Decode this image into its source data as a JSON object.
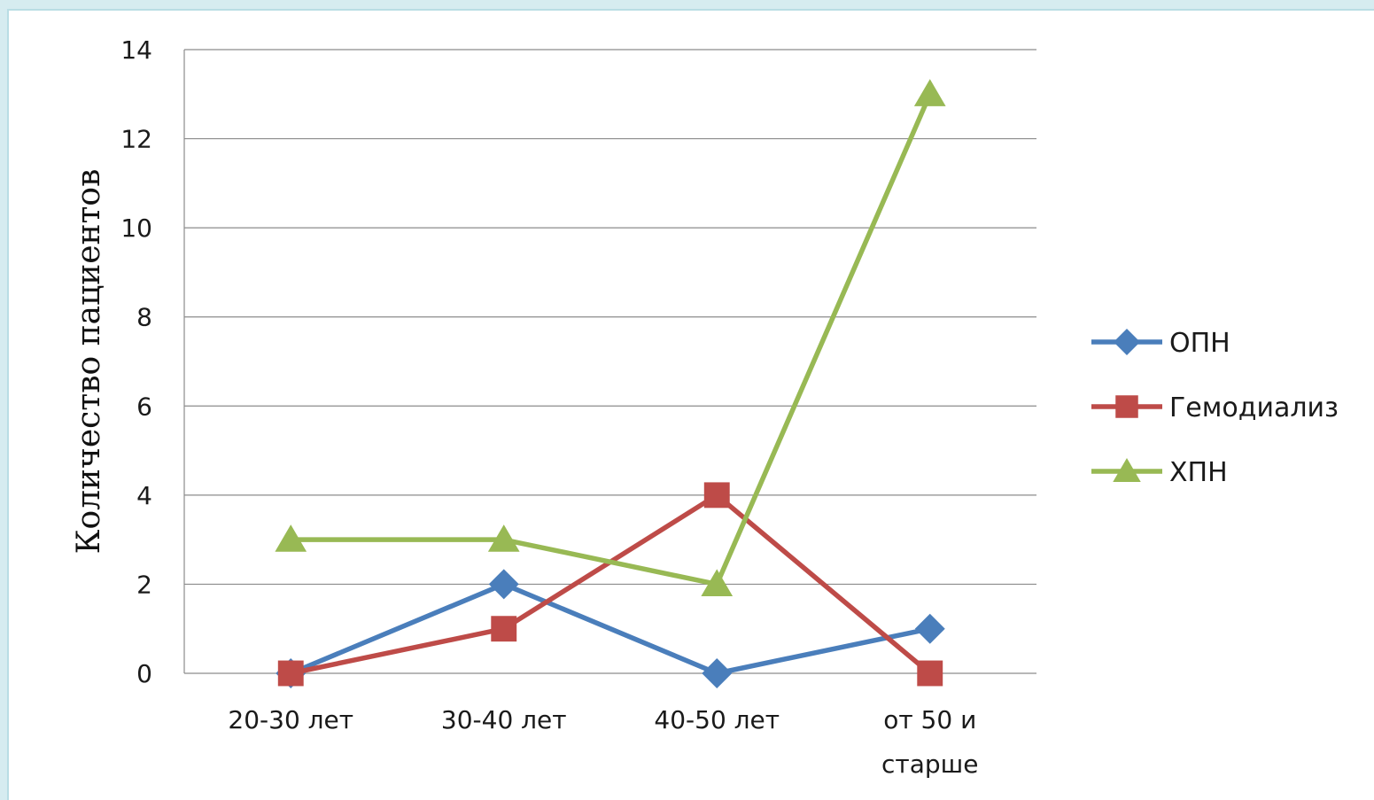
{
  "chart_data": {
    "type": "line",
    "title": "",
    "xlabel": "",
    "ylabel": "Количество пациентов",
    "ylim": [
      0,
      14
    ],
    "yticks": [
      0,
      2,
      4,
      6,
      8,
      10,
      12,
      14
    ],
    "grid": true,
    "legend_position": "right",
    "categories": [
      [
        "20-30 лет"
      ],
      [
        "30-40 лет"
      ],
      [
        "40-50 лет"
      ],
      [
        "от 50 и",
        "старше"
      ]
    ],
    "series": [
      {
        "name": "ОПН",
        "values": [
          0,
          2,
          0,
          1
        ],
        "color": "#4a7ebb",
        "marker": "diamond"
      },
      {
        "name": "Гемодиализ",
        "values": [
          0,
          1,
          4,
          0
        ],
        "color": "#be4b48",
        "marker": "square"
      },
      {
        "name": "ХПН",
        "values": [
          3,
          3,
          2,
          13
        ],
        "color": "#98b954",
        "marker": "triangle"
      }
    ]
  }
}
